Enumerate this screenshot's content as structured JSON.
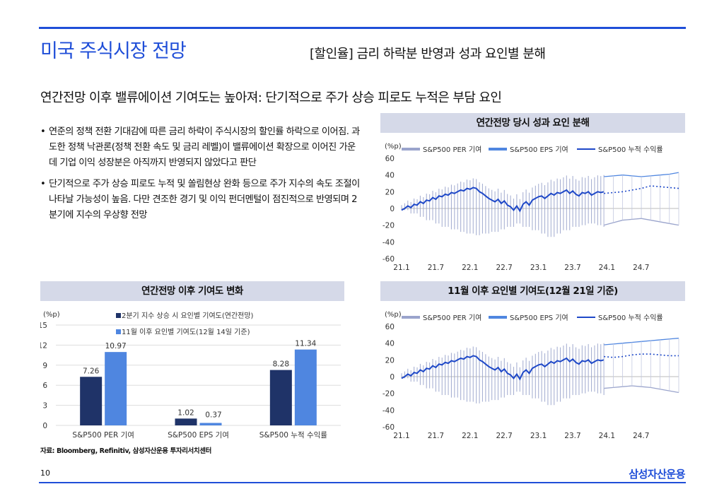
{
  "page": {
    "title": "미국 주식시장 전망",
    "subtitle": "[할인율] 금리 하락분 반영과 성과 요인별 분해",
    "headline": "연간전망 이후 밸류에이션 기여도는 높아져: 단기적으로 주가 상승 피로도 누적은 부담 요인",
    "bullets": [
      "연준의 정책 전환 기대감에 따른 금리 하락이 주식시장의 할인률 하락으로 이어짐. 과도한 정책 낙관론(정책 전환 속도 및 금리 레벨)이 밸류에이션 확장으로 이어진 가운데 기업 이익 성장분은 아직까지 반영되지 않았다고 판단",
      "단기적으로 주가 상승 피로도 누적 및 쏠림현상 완화 등으로 주가 지수의 속도 조절이 나타날 가능성이 높음. 다만 견조한 경기 및 이익 펀더멘털이 점진적으로 반영되며 2분기에 지수의 우상향 전망"
    ],
    "source": "자료: Bloomberg, Refinitiv, 삼성자산운용 투자리서치센터",
    "page_number": "10",
    "brand": "삼성자산운용"
  },
  "panels": {
    "top_right": "연간전망 당시 성과 요인 분해",
    "bottom_left": "연간전망 이후 기여도 변화",
    "bottom_right": "11월 이후 요인별 기여도(12월 21일 기준)"
  },
  "colors": {
    "brand": "#1f4ed8",
    "dark_bar": "#1f3368",
    "light_bar": "#4f86e0",
    "per_fill": "#9aa4cc",
    "eps_fill": "#4f86e0",
    "line": "#1e48c8",
    "panel_bg": "#d5d9e8"
  },
  "chart_data": [
    {
      "id": "decomp_annual",
      "type": "area",
      "unit": "(%p)",
      "ylim": [
        -60,
        60
      ],
      "yticks": [
        60,
        40,
        20,
        0,
        -20,
        -40,
        -60
      ],
      "xticks": [
        "21.1",
        "21.7",
        "22.1",
        "22.7",
        "23.1",
        "23.7",
        "24.1",
        "24.7"
      ],
      "legend": [
        "S&P500 PER 기여",
        "S&P500 EPS 기여",
        "S&P500 누적 수익률"
      ],
      "cumulative_return": [
        -2,
        0,
        3,
        1,
        5,
        4,
        8,
        6,
        10,
        9,
        13,
        11,
        15,
        14,
        17,
        16,
        19,
        18,
        20,
        22,
        21,
        24,
        23,
        25,
        24,
        20,
        18,
        15,
        12,
        10,
        8,
        11,
        6,
        9,
        4,
        2,
        -2,
        3,
        -3,
        5,
        8,
        4,
        10,
        12,
        14,
        15,
        12,
        15,
        18,
        16,
        19,
        18,
        20,
        22,
        18,
        21,
        17,
        15,
        19,
        18,
        20,
        16,
        18,
        20,
        19,
        20
      ],
      "per_extent": [
        -2,
        -6,
        -10,
        -14,
        -18,
        -22,
        -25,
        -28,
        -30,
        -32,
        -30,
        -28,
        -25,
        -22,
        -18,
        -22,
        -26,
        -30,
        -34,
        -30,
        -26,
        -22,
        -20,
        -18,
        -20,
        -22
      ],
      "projection_per": [
        -20,
        -17,
        -14,
        -13,
        -12,
        -14,
        -16,
        -18,
        -20
      ],
      "projection_eps": [
        38,
        39,
        40,
        39,
        38,
        39,
        40,
        41,
        43
      ],
      "projection_return": [
        18,
        19,
        20,
        22,
        24,
        27,
        26,
        25,
        24
      ]
    },
    {
      "id": "contribution_change",
      "type": "bar",
      "unit": "(%p)",
      "ylim": [
        0,
        15
      ],
      "yticks": [
        15,
        12,
        9,
        6,
        3,
        0
      ],
      "categories": [
        "S&P500 PER 기여",
        "S&P500 EPS 기여",
        "S&P500 누적 수익률"
      ],
      "series": [
        {
          "name": "2분기 지수 상승 시 요인별 기여도(연간전망)",
          "values": [
            7.26,
            1.02,
            8.28
          ],
          "labels": [
            "7.26",
            "1.02",
            "8.28"
          ]
        },
        {
          "name": "11월 이후 요인별 기여도(12월 14일 기준)",
          "values": [
            10.97,
            0.37,
            11.34
          ],
          "labels": [
            "10.97",
            "0.37",
            "11.34"
          ]
        }
      ]
    },
    {
      "id": "decomp_since_nov",
      "type": "area",
      "unit": "(%p)",
      "ylim": [
        -60,
        60
      ],
      "yticks": [
        60,
        40,
        20,
        0,
        -20,
        -40,
        -60
      ],
      "xticks": [
        "21.1",
        "21.7",
        "22.1",
        "22.7",
        "23.1",
        "23.7",
        "24.1",
        "24.7"
      ],
      "legend": [
        "S&P500 PER 기여",
        "S&P500 EPS 기여",
        "S&P500 누적 수익률"
      ],
      "cumulative_return": [
        -2,
        0,
        3,
        1,
        5,
        4,
        8,
        6,
        10,
        9,
        13,
        11,
        15,
        14,
        17,
        16,
        19,
        18,
        20,
        22,
        21,
        24,
        23,
        25,
        24,
        20,
        18,
        15,
        12,
        10,
        8,
        11,
        6,
        9,
        4,
        2,
        -2,
        3,
        -3,
        5,
        8,
        4,
        10,
        12,
        14,
        15,
        12,
        15,
        18,
        16,
        19,
        18,
        20,
        22,
        18,
        21,
        17,
        15,
        19,
        18,
        20,
        16,
        18,
        20,
        19,
        20
      ],
      "per_extent": [
        -2,
        -6,
        -10,
        -14,
        -18,
        -22,
        -25,
        -28,
        -30,
        -32,
        -30,
        -28,
        -25,
        -22,
        -18,
        -22,
        -26,
        -30,
        -34,
        -30,
        -26,
        -22,
        -20,
        -18,
        -20,
        -22
      ],
      "projection_per": [
        -14,
        -13,
        -12,
        -11,
        -12,
        -13,
        -15,
        -17,
        -19
      ],
      "projection_eps": [
        38,
        39,
        40,
        41,
        42,
        43,
        44,
        45,
        46
      ],
      "projection_return": [
        24,
        23,
        24,
        26,
        27,
        27,
        26,
        25,
        25
      ]
    }
  ]
}
